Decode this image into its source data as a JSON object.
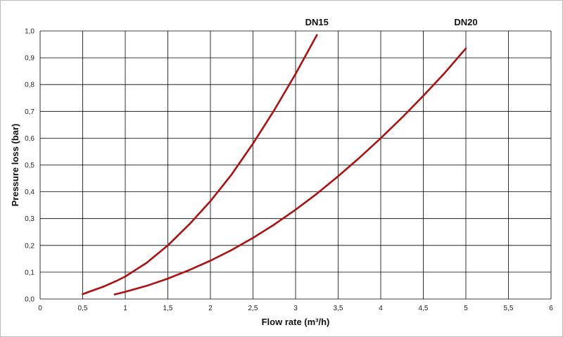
{
  "chart_data": {
    "type": "line",
    "xlabel": "Flow rate (m³/h)",
    "ylabel": "Pressure loss (bar)",
    "xlim": [
      0,
      6
    ],
    "ylim": [
      0,
      1.0
    ],
    "x_ticks": [
      "0",
      "0,5",
      "1",
      "1,5",
      "2",
      "2,5",
      "3",
      "3,5",
      "4",
      "4,5",
      "5",
      "5,5",
      "6"
    ],
    "y_ticks": [
      "0,0",
      "0,1",
      "0,2",
      "0,3",
      "0,4",
      "0,5",
      "0,6",
      "0,7",
      "0,8",
      "0,9",
      "1,0"
    ],
    "grid": true,
    "series": [
      {
        "name": "DN15",
        "color": "#b01010",
        "x": [
          0.5,
          0.6,
          0.75,
          0.9,
          1.0,
          1.25,
          1.5,
          1.75,
          2.0,
          2.25,
          2.5,
          2.75,
          3.0,
          3.25
        ],
        "y": [
          0.018,
          0.03,
          0.047,
          0.068,
          0.084,
          0.135,
          0.2,
          0.278,
          0.365,
          0.465,
          0.58,
          0.705,
          0.84,
          0.985
        ]
      },
      {
        "name": "DN20",
        "color": "#b01010",
        "x": [
          0.875,
          1.0,
          1.25,
          1.5,
          1.75,
          2.0,
          2.25,
          2.5,
          2.75,
          3.0,
          3.25,
          3.5,
          3.75,
          4.0,
          4.25,
          4.5,
          4.75,
          5.0
        ],
        "y": [
          0.017,
          0.027,
          0.049,
          0.076,
          0.108,
          0.143,
          0.183,
          0.228,
          0.278,
          0.333,
          0.393,
          0.458,
          0.527,
          0.6,
          0.677,
          0.758,
          0.843,
          0.935
        ]
      }
    ]
  }
}
